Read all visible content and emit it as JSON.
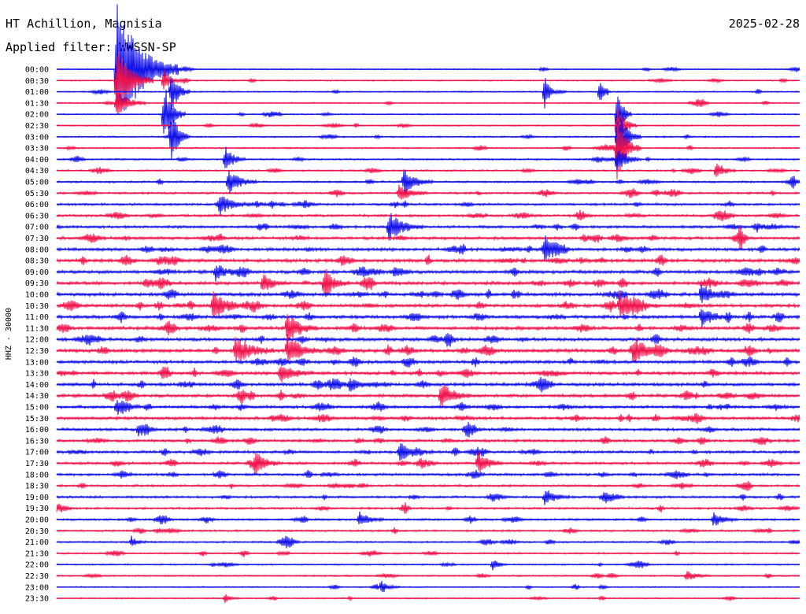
{
  "header": {
    "station": "HT Achillion, Magnisia",
    "date": "2025-02-28",
    "filter": "Applied filter: WWSSN-SP"
  },
  "colors": {
    "trace_a": "#1010e8",
    "trace_b": "#f0124a",
    "text": "#000000",
    "background": "#ffffff"
  },
  "chart_data": {
    "type": "line",
    "ylabel": "HHZ - 30000",
    "row_labels": [
      "00:00",
      "00:30",
      "01:00",
      "01:30",
      "02:00",
      "02:30",
      "03:00",
      "03:30",
      "04:00",
      "04:30",
      "05:00",
      "05:30",
      "06:00",
      "06:30",
      "07:00",
      "07:30",
      "08:00",
      "08:30",
      "09:00",
      "09:30",
      "10:00",
      "10:30",
      "11:00",
      "11:30",
      "12:00",
      "12:30",
      "13:00",
      "13:30",
      "14:00",
      "14:30",
      "15:00",
      "15:30",
      "16:00",
      "16:30",
      "17:00",
      "17:30",
      "18:00",
      "18:30",
      "19:00",
      "19:30",
      "20:00",
      "20:30",
      "21:00",
      "21:30",
      "22:00",
      "22:30",
      "23:00",
      "23:30"
    ],
    "row_colors": [
      "trace_a",
      "trace_b",
      "trace_a",
      "trace_b",
      "trace_a",
      "trace_b",
      "trace_a",
      "trace_b",
      "trace_a",
      "trace_b",
      "trace_a",
      "trace_b",
      "trace_a",
      "trace_b",
      "trace_a",
      "trace_b",
      "trace_a",
      "trace_b",
      "trace_a",
      "trace_b",
      "trace_a",
      "trace_b",
      "trace_a",
      "trace_b",
      "trace_a",
      "trace_b",
      "trace_a",
      "trace_b",
      "trace_a",
      "trace_b",
      "trace_a",
      "trace_b",
      "trace_a",
      "trace_b",
      "trace_a",
      "trace_b",
      "trace_a",
      "trace_b",
      "trace_a",
      "trace_b",
      "trace_a",
      "trace_b",
      "trace_a",
      "trace_b",
      "trace_a",
      "trace_b",
      "trace_a",
      "trace_b"
    ],
    "row_duration_minutes": 30,
    "x_range_minutes": [
      0,
      30
    ],
    "noise_level": [
      0.6,
      0.6,
      0.6,
      0.6,
      0.6,
      0.6,
      0.7,
      0.7,
      0.8,
      0.8,
      0.9,
      1.0,
      1.1,
      1.2,
      1.3,
      1.4,
      1.5,
      1.6,
      1.6,
      1.6,
      1.6,
      1.6,
      1.6,
      1.6,
      1.6,
      1.6,
      1.5,
      1.5,
      1.5,
      1.5,
      1.4,
      1.4,
      1.3,
      1.3,
      1.3,
      1.2,
      1.2,
      1.1,
      1.1,
      1.0,
      1.0,
      0.9,
      0.8,
      0.8,
      0.7,
      0.7,
      0.6,
      0.6
    ],
    "events": [
      {
        "row": 0,
        "minute": 2.4,
        "amplitude": 90,
        "duration_minutes": 2.5
      },
      {
        "row": 1,
        "minute": 2.4,
        "amplitude": 45,
        "duration_minutes": 1.5
      },
      {
        "row": 3,
        "minute": 2.4,
        "amplitude": 20,
        "duration_minutes": 1.2
      },
      {
        "row": 1,
        "minute": 4.3,
        "amplitude": 18,
        "duration_minutes": 0.6
      },
      {
        "row": 2,
        "minute": 4.6,
        "amplitude": 30,
        "duration_minutes": 0.8
      },
      {
        "row": 4,
        "minute": 4.3,
        "amplitude": 45,
        "duration_minutes": 0.9
      },
      {
        "row": 6,
        "minute": 4.6,
        "amplitude": 30,
        "duration_minutes": 0.8
      },
      {
        "row": 2,
        "minute": 19.7,
        "amplitude": 30,
        "duration_minutes": 0.4
      },
      {
        "row": 2,
        "minute": 21.9,
        "amplitude": 20,
        "duration_minutes": 0.4
      },
      {
        "row": 4,
        "minute": 22.6,
        "amplitude": 40,
        "duration_minutes": 0.6
      },
      {
        "row": 5,
        "minute": 22.6,
        "amplitude": 30,
        "duration_minutes": 0.8
      },
      {
        "row": 6,
        "minute": 22.6,
        "amplitude": 35,
        "duration_minutes": 1.0
      },
      {
        "row": 7,
        "minute": 22.6,
        "amplitude": 40,
        "duration_minutes": 1.0
      },
      {
        "row": 8,
        "minute": 22.6,
        "amplitude": 20,
        "duration_minutes": 1.0
      },
      {
        "row": 10,
        "minute": 14.0,
        "amplitude": 18,
        "duration_minutes": 1.2
      },
      {
        "row": 9,
        "minute": 26.6,
        "amplitude": 14,
        "duration_minutes": 0.8
      },
      {
        "row": 8,
        "minute": 6.8,
        "amplitude": 18,
        "duration_minutes": 0.8
      },
      {
        "row": 10,
        "minute": 6.9,
        "amplitude": 18,
        "duration_minutes": 1.2
      },
      {
        "row": 12,
        "minute": 6.6,
        "amplitude": 14,
        "duration_minutes": 1.2
      },
      {
        "row": 11,
        "minute": 13.8,
        "amplitude": 12,
        "duration_minutes": 1.2
      },
      {
        "row": 14,
        "minute": 13.4,
        "amplitude": 20,
        "duration_minutes": 1.4
      },
      {
        "row": 16,
        "minute": 19.7,
        "amplitude": 16,
        "duration_minutes": 1.0
      },
      {
        "row": 18,
        "minute": 6.4,
        "amplitude": 12,
        "duration_minutes": 1.0
      },
      {
        "row": 19,
        "minute": 10.8,
        "amplitude": 18,
        "duration_minutes": 1.0
      },
      {
        "row": 19,
        "minute": 8.3,
        "amplitude": 14,
        "duration_minutes": 1.0
      },
      {
        "row": 20,
        "minute": 26.0,
        "amplitude": 14,
        "duration_minutes": 1.2
      },
      {
        "row": 21,
        "minute": 6.3,
        "amplitude": 20,
        "duration_minutes": 1.4
      },
      {
        "row": 21,
        "minute": 22.7,
        "amplitude": 18,
        "duration_minutes": 1.6
      },
      {
        "row": 22,
        "minute": 26.0,
        "amplitude": 14,
        "duration_minutes": 1.2
      },
      {
        "row": 23,
        "minute": 9.3,
        "amplitude": 22,
        "duration_minutes": 1.2
      },
      {
        "row": 25,
        "minute": 7.2,
        "amplitude": 20,
        "duration_minutes": 1.6
      },
      {
        "row": 25,
        "minute": 9.3,
        "amplitude": 22,
        "duration_minutes": 1.4
      },
      {
        "row": 25,
        "minute": 23.3,
        "amplitude": 20,
        "duration_minutes": 1.2
      },
      {
        "row": 27,
        "minute": 9.0,
        "amplitude": 14,
        "duration_minutes": 1.4
      },
      {
        "row": 28,
        "minute": 11.8,
        "amplitude": 10,
        "duration_minutes": 1.0
      },
      {
        "row": 29,
        "minute": 15.5,
        "amplitude": 18,
        "duration_minutes": 1.2
      },
      {
        "row": 30,
        "minute": 2.4,
        "amplitude": 10,
        "duration_minutes": 1.0
      },
      {
        "row": 32,
        "minute": 3.3,
        "amplitude": 10,
        "duration_minutes": 0.8
      },
      {
        "row": 34,
        "minute": 13.8,
        "amplitude": 12,
        "duration_minutes": 1.4
      },
      {
        "row": 35,
        "minute": 8.0,
        "amplitude": 18,
        "duration_minutes": 1.0
      },
      {
        "row": 35,
        "minute": 17.0,
        "amplitude": 18,
        "duration_minutes": 1.0
      },
      {
        "row": 38,
        "minute": 19.7,
        "amplitude": 12,
        "duration_minutes": 1.0
      },
      {
        "row": 40,
        "minute": 12.2,
        "amplitude": 10,
        "duration_minutes": 1.0
      },
      {
        "row": 40,
        "minute": 26.5,
        "amplitude": 10,
        "duration_minutes": 1.0
      },
      {
        "row": 42,
        "minute": 3.0,
        "amplitude": 8,
        "duration_minutes": 0.6
      },
      {
        "row": 44,
        "minute": 17.6,
        "amplitude": 8,
        "duration_minutes": 0.6
      },
      {
        "row": 45,
        "minute": 25.4,
        "amplitude": 8,
        "duration_minutes": 1.0
      },
      {
        "row": 46,
        "minute": 13.1,
        "amplitude": 8,
        "duration_minutes": 0.8
      },
      {
        "row": 47,
        "minute": 6.8,
        "amplitude": 6,
        "duration_minutes": 0.6
      }
    ]
  }
}
